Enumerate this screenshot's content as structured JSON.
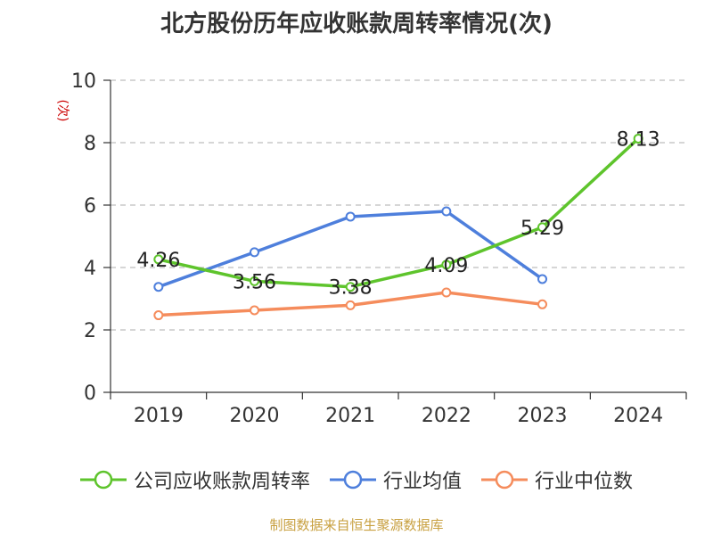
{
  "chart_data": {
    "type": "line",
    "title": "北方股份历年应收账款周转率情况(次)",
    "ylabel": "(次)",
    "categories": [
      "2019",
      "2020",
      "2021",
      "2022",
      "2023",
      "2024"
    ],
    "ylim": [
      0,
      10
    ],
    "yticks": [
      0,
      2,
      4,
      6,
      8,
      10
    ],
    "grid": true,
    "legend_position": "bottom",
    "series": [
      {
        "name": "公司应收账款周转率",
        "color": "#5ec42c",
        "values": [
          4.26,
          3.56,
          3.38,
          4.09,
          5.29,
          8.13
        ],
        "labels": [
          "4.26",
          "3.56",
          "3.38",
          "4.09",
          "5.29",
          "8.13"
        ]
      },
      {
        "name": "行业均值",
        "color": "#4e7fdc",
        "values": [
          3.38,
          4.49,
          5.63,
          5.8,
          3.63,
          null
        ]
      },
      {
        "name": "行业中位数",
        "color": "#f58c5c",
        "values": [
          2.47,
          2.63,
          2.79,
          3.2,
          2.82,
          null
        ]
      }
    ]
  },
  "source_note": "制图数据来自恒生聚源数据库"
}
